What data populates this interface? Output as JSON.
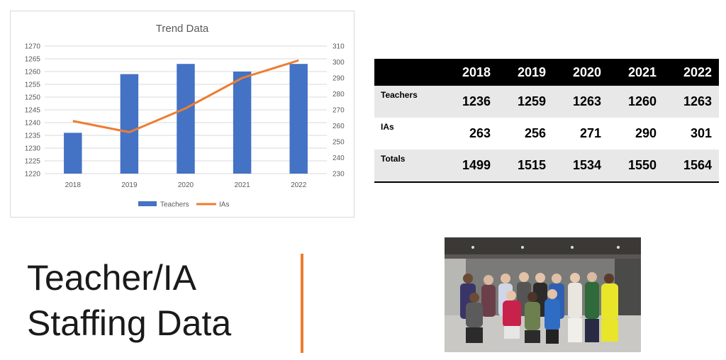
{
  "chart_data": {
    "type": "bar+line",
    "title": "Trend Data",
    "categories": [
      "2018",
      "2019",
      "2020",
      "2021",
      "2022"
    ],
    "series": [
      {
        "name": "Teachers",
        "type": "bar",
        "axis": "left",
        "color": "#4472c4",
        "values": [
          1236,
          1259,
          1263,
          1260,
          1263
        ]
      },
      {
        "name": "IAs",
        "type": "line",
        "axis": "right",
        "color": "#ed7d31",
        "values": [
          263,
          256,
          271,
          290,
          301
        ]
      }
    ],
    "y_left": {
      "range": [
        1220,
        1270
      ],
      "ticks": [
        "1220",
        "1225",
        "1230",
        "1235",
        "1240",
        "1245",
        "1250",
        "1255",
        "1260",
        "1265",
        "1270"
      ]
    },
    "y_right": {
      "range": [
        230,
        310
      ],
      "ticks": [
        "230",
        "240",
        "250",
        "260",
        "270",
        "280",
        "290",
        "300",
        "310"
      ]
    },
    "grid": true,
    "legend_position": "bottom"
  },
  "table": {
    "headers": [
      "2018",
      "2019",
      "2020",
      "2021",
      "2022"
    ],
    "rows": [
      {
        "label": "Teachers",
        "values": [
          "1236",
          "1259",
          "1263",
          "1260",
          "1263"
        ]
      },
      {
        "label": "IAs",
        "values": [
          "263",
          "256",
          "271",
          "290",
          "301"
        ]
      },
      {
        "label": "Totals",
        "values": [
          "1499",
          "1515",
          "1534",
          "1550",
          "1564"
        ]
      }
    ]
  },
  "slide": {
    "title_line1": "Teacher/IA",
    "title_line2": "Staffing Data",
    "accent_color": "#ed7d31"
  },
  "photo": {
    "icon": "group-photo-icon"
  }
}
